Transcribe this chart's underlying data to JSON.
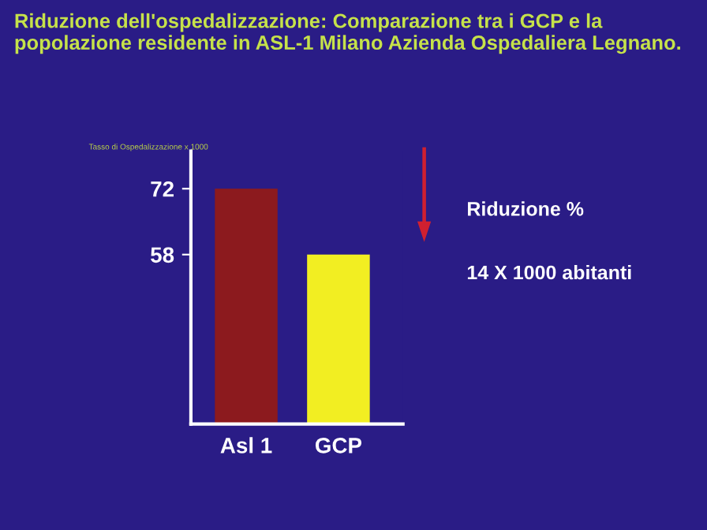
{
  "chart_data": {
    "type": "bar",
    "title": "Riduzione dell'ospedalizzazione: Comparazione tra i GCP e la popolazione residente in ASL-1 Milano Azienda Ospedaliera Legnano.",
    "ylabel": "Tasso di Ospedalizzazione x 1000",
    "categories": [
      "Asl 1",
      "GCP"
    ],
    "values": [
      72,
      58
    ],
    "colors": [
      "#8c1a1e",
      "#f2ee22"
    ],
    "ylim": [
      22,
      80
    ],
    "yticks": [
      58,
      72
    ],
    "grid": false,
    "legend": false,
    "annotations": [
      "Riduzione %",
      "14 X 1000 abitanti"
    ]
  }
}
